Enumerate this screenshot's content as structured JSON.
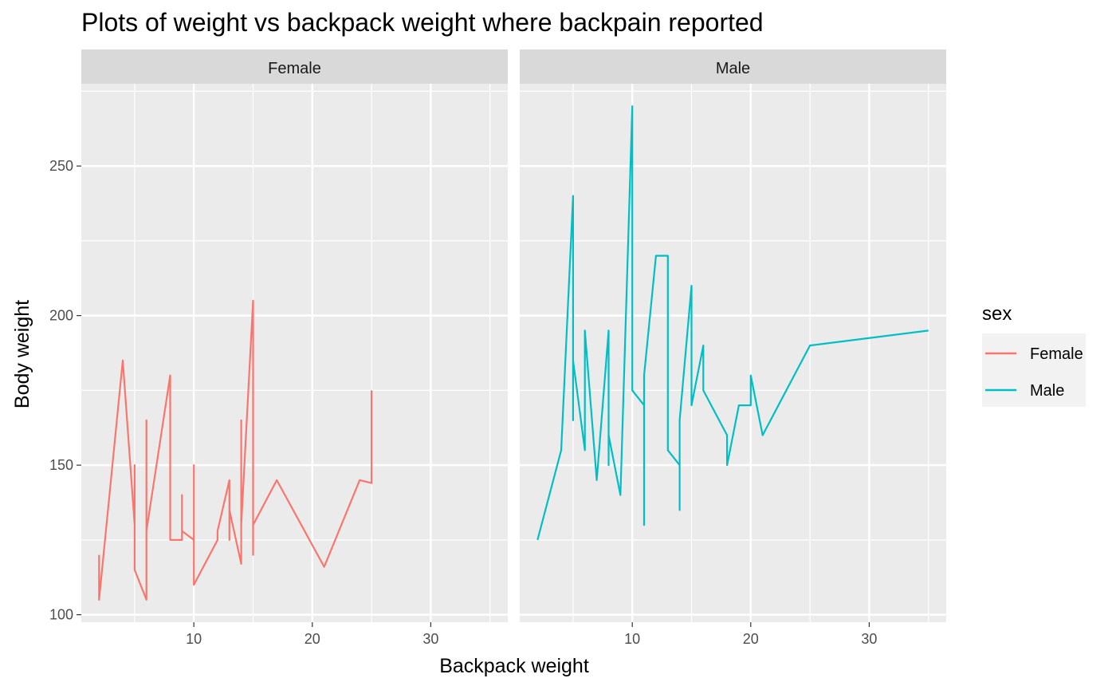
{
  "chart_data": {
    "type": "line",
    "title": "Plots of weight vs backpack weight where backpain reported",
    "xlabel": "Backpack weight",
    "ylabel": "Body weight",
    "xlim": [
      0.5,
      36.5
    ],
    "ylim": [
      97.5,
      277.5
    ],
    "x_ticks": [
      10,
      20,
      30
    ],
    "y_ticks": [
      100,
      150,
      200,
      250
    ],
    "x_minor": [
      5,
      15,
      25,
      35
    ],
    "y_minor": [
      125,
      175,
      225,
      275
    ],
    "grid": true,
    "legend": {
      "title": "sex",
      "placement": "right"
    },
    "facets": [
      {
        "label": "Female",
        "color": "#F8766D",
        "points": [
          [
            2,
            120
          ],
          [
            2,
            105
          ],
          [
            4,
            185
          ],
          [
            5,
            130
          ],
          [
            5,
            150
          ],
          [
            5,
            115
          ],
          [
            6,
            105
          ],
          [
            6,
            165
          ],
          [
            6,
            128
          ],
          [
            8,
            180
          ],
          [
            8,
            125
          ],
          [
            9,
            125
          ],
          [
            9,
            140
          ],
          [
            9,
            128
          ],
          [
            10,
            125
          ],
          [
            10,
            150
          ],
          [
            10,
            110
          ],
          [
            12,
            125
          ],
          [
            12,
            128
          ],
          [
            13,
            145
          ],
          [
            13,
            125
          ],
          [
            13,
            135
          ],
          [
            14,
            117
          ],
          [
            14,
            165
          ],
          [
            14,
            130
          ],
          [
            15,
            205
          ],
          [
            15,
            120
          ],
          [
            15,
            130
          ],
          [
            17,
            145
          ],
          [
            21,
            116
          ],
          [
            24,
            145
          ],
          [
            25,
            144
          ],
          [
            25,
            175
          ]
        ]
      },
      {
        "label": "Male",
        "color": "#00BFC4",
        "points": [
          [
            2,
            125
          ],
          [
            4,
            155
          ],
          [
            5,
            240
          ],
          [
            5,
            165
          ],
          [
            5,
            185
          ],
          [
            6,
            155
          ],
          [
            6,
            195
          ],
          [
            7,
            145
          ],
          [
            8,
            195
          ],
          [
            8,
            150
          ],
          [
            8,
            160
          ],
          [
            9,
            140
          ],
          [
            10,
            270
          ],
          [
            10,
            175
          ],
          [
            11,
            170
          ],
          [
            11,
            130
          ],
          [
            11,
            180
          ],
          [
            12,
            220
          ],
          [
            13,
            220
          ],
          [
            13,
            155
          ],
          [
            14,
            150
          ],
          [
            14,
            135
          ],
          [
            14,
            165
          ],
          [
            15,
            210
          ],
          [
            15,
            170
          ],
          [
            16,
            190
          ],
          [
            16,
            175
          ],
          [
            18,
            160
          ],
          [
            18,
            150
          ],
          [
            19,
            170
          ],
          [
            20,
            170
          ],
          [
            20,
            180
          ],
          [
            21,
            160
          ],
          [
            25,
            190
          ],
          [
            35,
            195
          ]
        ]
      }
    ]
  }
}
